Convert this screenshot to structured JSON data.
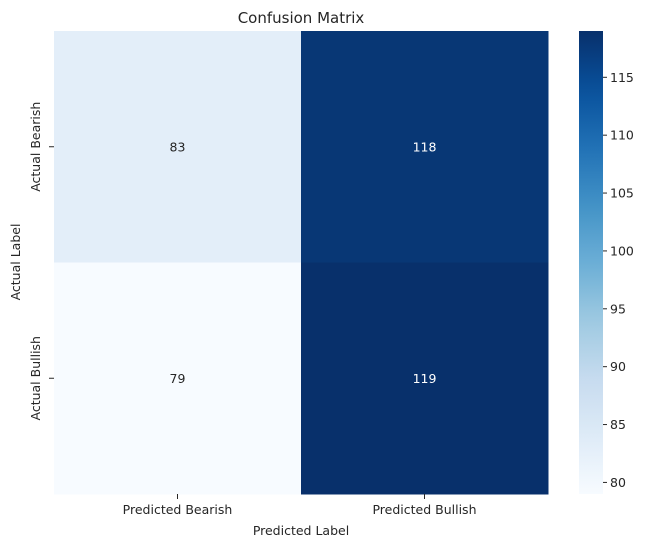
{
  "chart_data": {
    "type": "heatmap",
    "title": "Confusion Matrix",
    "xlabel": "Predicted Label",
    "ylabel": "Actual Label",
    "x_categories": [
      "Predicted Bearish",
      "Predicted Bullish"
    ],
    "y_categories": [
      "Actual Bearish",
      "Actual Bullish"
    ],
    "values": [
      [
        83,
        118
      ],
      [
        79,
        119
      ]
    ],
    "colormap": "Blues",
    "colorbar": {
      "range": [
        79,
        119
      ],
      "ticks": [
        80,
        85,
        90,
        95,
        100,
        105,
        110,
        115
      ]
    },
    "grid": false
  }
}
